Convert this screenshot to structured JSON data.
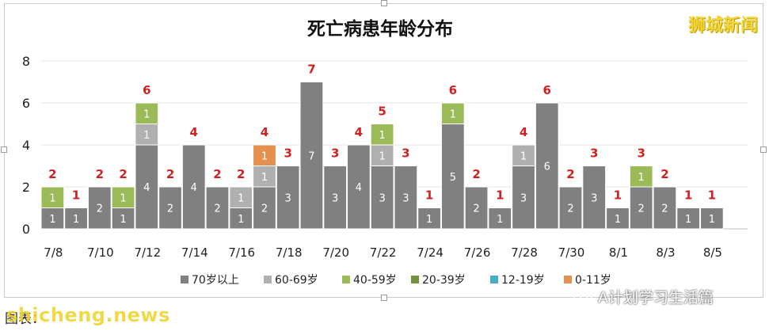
{
  "watermark_top_right": "狮城新闻",
  "footer": {
    "caption": "图表：",
    "site": "shicheng.news",
    "wechat_account": "A计划学习生活篇"
  },
  "colors": {
    "age_70_plus": "#808080",
    "age_60_69": "#b0b0b0",
    "age_40_59": "#9bbb59",
    "age_20_39": "#76923c",
    "age_12_19": "#4bacc6",
    "age_0_11": "#e4914f",
    "total_label": "#d02020",
    "grid": "#e6e6e6"
  },
  "chart_data": {
    "type": "bar",
    "stacked": true,
    "title": "死亡病患年龄分布",
    "ylim": [
      0,
      8
    ],
    "yticks": [
      0,
      2,
      4,
      6,
      8
    ],
    "grid": true,
    "legend_position": "bottom",
    "categories": [
      "7/8",
      "7/9",
      "7/10",
      "7/11",
      "7/12",
      "7/13",
      "7/14",
      "7/15",
      "7/16",
      "7/17",
      "7/18",
      "7/19",
      "7/20",
      "7/21",
      "7/22",
      "7/23",
      "7/24",
      "7/25",
      "7/26",
      "7/27",
      "7/28",
      "7/29",
      "7/30",
      "7/31",
      "8/1",
      "8/2",
      "8/3",
      "8/4",
      "8/5",
      "8/6"
    ],
    "tick_labels": [
      "7/8",
      "7/10",
      "7/12",
      "7/14",
      "7/16",
      "7/18",
      "7/20",
      "7/22",
      "7/24",
      "7/26",
      "7/28",
      "7/30",
      "8/1",
      "8/3",
      "8/5"
    ],
    "series": [
      {
        "name": "70岁以上",
        "color_key": "age_70_plus",
        "values": [
          1,
          1,
          2,
          1,
          4,
          2,
          4,
          2,
          1,
          2,
          3,
          7,
          3,
          4,
          3,
          3,
          1,
          5,
          2,
          1,
          3,
          6,
          2,
          3,
          1,
          2,
          2,
          1,
          1,
          0
        ]
      },
      {
        "name": "60-69岁",
        "color_key": "age_60_69",
        "values": [
          0,
          0,
          0,
          0,
          1,
          0,
          0,
          0,
          1,
          1,
          0,
          0,
          0,
          0,
          1,
          0,
          0,
          0,
          0,
          0,
          1,
          0,
          0,
          0,
          0,
          0,
          0,
          0,
          0,
          0
        ]
      },
      {
        "name": "40-59岁",
        "color_key": "age_40_59",
        "values": [
          1,
          0,
          0,
          1,
          1,
          0,
          0,
          0,
          0,
          0,
          0,
          0,
          0,
          0,
          1,
          0,
          0,
          1,
          0,
          0,
          0,
          0,
          0,
          0,
          0,
          1,
          0,
          0,
          0,
          0
        ]
      },
      {
        "name": "20-39岁",
        "color_key": "age_20_39",
        "values": [
          0,
          0,
          0,
          0,
          0,
          0,
          0,
          0,
          0,
          0,
          0,
          0,
          0,
          0,
          0,
          0,
          0,
          0,
          0,
          0,
          0,
          0,
          0,
          0,
          0,
          0,
          0,
          0,
          0,
          0
        ]
      },
      {
        "name": "12-19岁",
        "color_key": "age_12_19",
        "values": [
          0,
          0,
          0,
          0,
          0,
          0,
          0,
          0,
          0,
          0,
          0,
          0,
          0,
          0,
          0,
          0,
          0,
          0,
          0,
          0,
          0,
          0,
          0,
          0,
          0,
          0,
          0,
          0,
          0,
          0
        ]
      },
      {
        "name": "0-11岁",
        "color_key": "age_0_11",
        "values": [
          0,
          0,
          0,
          0,
          0,
          0,
          0,
          0,
          0,
          1,
          0,
          0,
          0,
          0,
          0,
          0,
          0,
          0,
          0,
          0,
          0,
          0,
          0,
          0,
          0,
          0,
          0,
          0,
          0,
          0
        ]
      }
    ],
    "totals": [
      2,
      1,
      2,
      2,
      6,
      2,
      4,
      2,
      2,
      4,
      3,
      7,
      3,
      4,
      5,
      3,
      1,
      6,
      2,
      1,
      4,
      6,
      2,
      3,
      1,
      3,
      2,
      1,
      1,
      0
    ]
  }
}
